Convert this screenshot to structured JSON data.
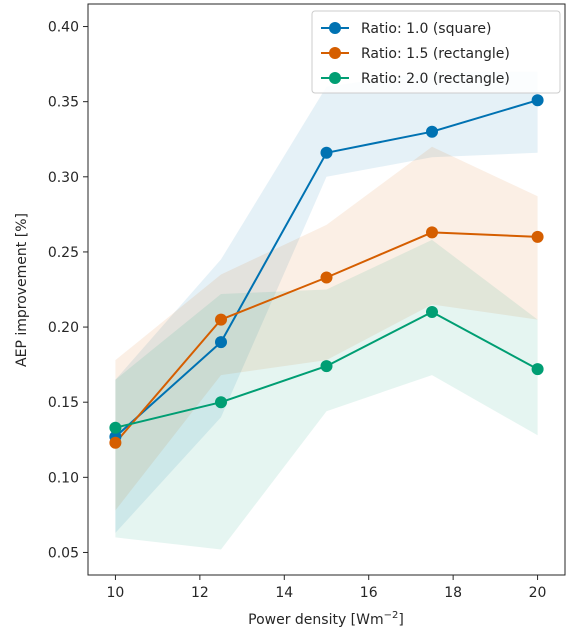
{
  "chart_data": {
    "type": "line",
    "xlabel": "Power density [Wm",
    "xlabel_sup": "−2",
    "xlabel_close": "]",
    "ylabel": "AEP improvement [%]",
    "x": [
      10,
      12.5,
      15,
      17.5,
      20
    ],
    "xlim": [
      9.35,
      20.65
    ],
    "ylim": [
      0.035,
      0.415
    ],
    "xticks": [
      "10",
      "12",
      "14",
      "16",
      "18",
      "20"
    ],
    "xtick_values": [
      10,
      12,
      14,
      16,
      18,
      20
    ],
    "yticks": [
      "0.05",
      "0.10",
      "0.15",
      "0.20",
      "0.25",
      "0.30",
      "0.35",
      "0.40"
    ],
    "ytick_values": [
      0.05,
      0.1,
      0.15,
      0.2,
      0.25,
      0.3,
      0.35,
      0.4
    ],
    "legend_position": "top-right",
    "grid": false,
    "series": [
      {
        "name": "Ratio: 1.0 (square)",
        "color": "#0072b2",
        "values": [
          0.127,
          0.19,
          0.316,
          0.33,
          0.351
        ],
        "band_upper": [
          0.165,
          0.245,
          0.36,
          0.37,
          0.37
        ],
        "band_lower": [
          0.063,
          0.14,
          0.3,
          0.313,
          0.316
        ]
      },
      {
        "name": "Ratio: 1.5 (rectangle)",
        "color": "#d55e00",
        "values": [
          0.123,
          0.205,
          0.233,
          0.263,
          0.26
        ],
        "band_upper": [
          0.178,
          0.235,
          0.268,
          0.32,
          0.287
        ],
        "band_lower": [
          0.078,
          0.168,
          0.178,
          0.215,
          0.205
        ]
      },
      {
        "name": "Ratio: 2.0 (rectangle)",
        "color": "#009e73",
        "values": [
          0.133,
          0.15,
          0.174,
          0.21,
          0.172
        ],
        "band_upper": [
          0.165,
          0.222,
          0.225,
          0.258,
          0.205
        ],
        "band_lower": [
          0.06,
          0.052,
          0.144,
          0.168,
          0.128
        ]
      }
    ]
  }
}
